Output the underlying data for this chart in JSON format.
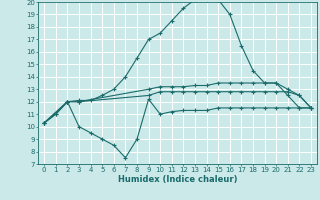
{
  "xlabel": "Humidex (Indice chaleur)",
  "bg_color": "#cce9e9",
  "line_color": "#1a6b6b",
  "grid_color": "#ffffff",
  "xlim": [
    -0.5,
    23.5
  ],
  "ylim": [
    7,
    20
  ],
  "xticks": [
    0,
    1,
    2,
    3,
    4,
    5,
    6,
    7,
    8,
    9,
    10,
    11,
    12,
    13,
    14,
    15,
    16,
    17,
    18,
    19,
    20,
    21,
    22,
    23
  ],
  "yticks": [
    7,
    8,
    9,
    10,
    11,
    12,
    13,
    14,
    15,
    16,
    17,
    18,
    19,
    20
  ],
  "line_main_x": [
    0,
    1,
    2,
    3,
    4,
    5,
    6,
    7,
    8,
    9,
    10,
    11,
    12,
    13,
    14,
    15,
    16,
    17,
    18,
    19,
    20,
    21,
    22,
    23
  ],
  "line_main_y": [
    10.3,
    11.0,
    12.0,
    12.1,
    12.1,
    12.5,
    13.0,
    14.0,
    15.5,
    17.0,
    17.5,
    18.5,
    19.5,
    20.2,
    20.2,
    20.2,
    19.0,
    16.5,
    14.5,
    13.5,
    13.5,
    12.5,
    11.5,
    11.5
  ],
  "line_upper_x": [
    0,
    2,
    3,
    9,
    10,
    11,
    12,
    13,
    14,
    15,
    16,
    17,
    18,
    19,
    20,
    21,
    22,
    23
  ],
  "line_upper_y": [
    10.3,
    12.0,
    12.0,
    13.0,
    13.2,
    13.2,
    13.2,
    13.3,
    13.3,
    13.5,
    13.5,
    13.5,
    13.5,
    13.5,
    13.5,
    13.0,
    12.5,
    11.5
  ],
  "line_mid_x": [
    0,
    2,
    3,
    9,
    10,
    11,
    12,
    13,
    14,
    15,
    16,
    17,
    18,
    19,
    20,
    21,
    22,
    23
  ],
  "line_mid_y": [
    10.3,
    12.0,
    12.0,
    12.5,
    12.8,
    12.8,
    12.8,
    12.8,
    12.8,
    12.8,
    12.8,
    12.8,
    12.8,
    12.8,
    12.8,
    12.8,
    12.5,
    11.5
  ],
  "line_lower_x": [
    0,
    1,
    2,
    3,
    4,
    5,
    6,
    7,
    8,
    9,
    10,
    11,
    12,
    13,
    14,
    15,
    16,
    17,
    18,
    19,
    20,
    21,
    22,
    23
  ],
  "line_lower_y": [
    10.3,
    11.0,
    12.0,
    10.0,
    9.5,
    9.0,
    8.5,
    7.5,
    9.0,
    12.2,
    11.0,
    11.2,
    11.3,
    11.3,
    11.3,
    11.5,
    11.5,
    11.5,
    11.5,
    11.5,
    11.5,
    11.5,
    11.5,
    11.5
  ]
}
